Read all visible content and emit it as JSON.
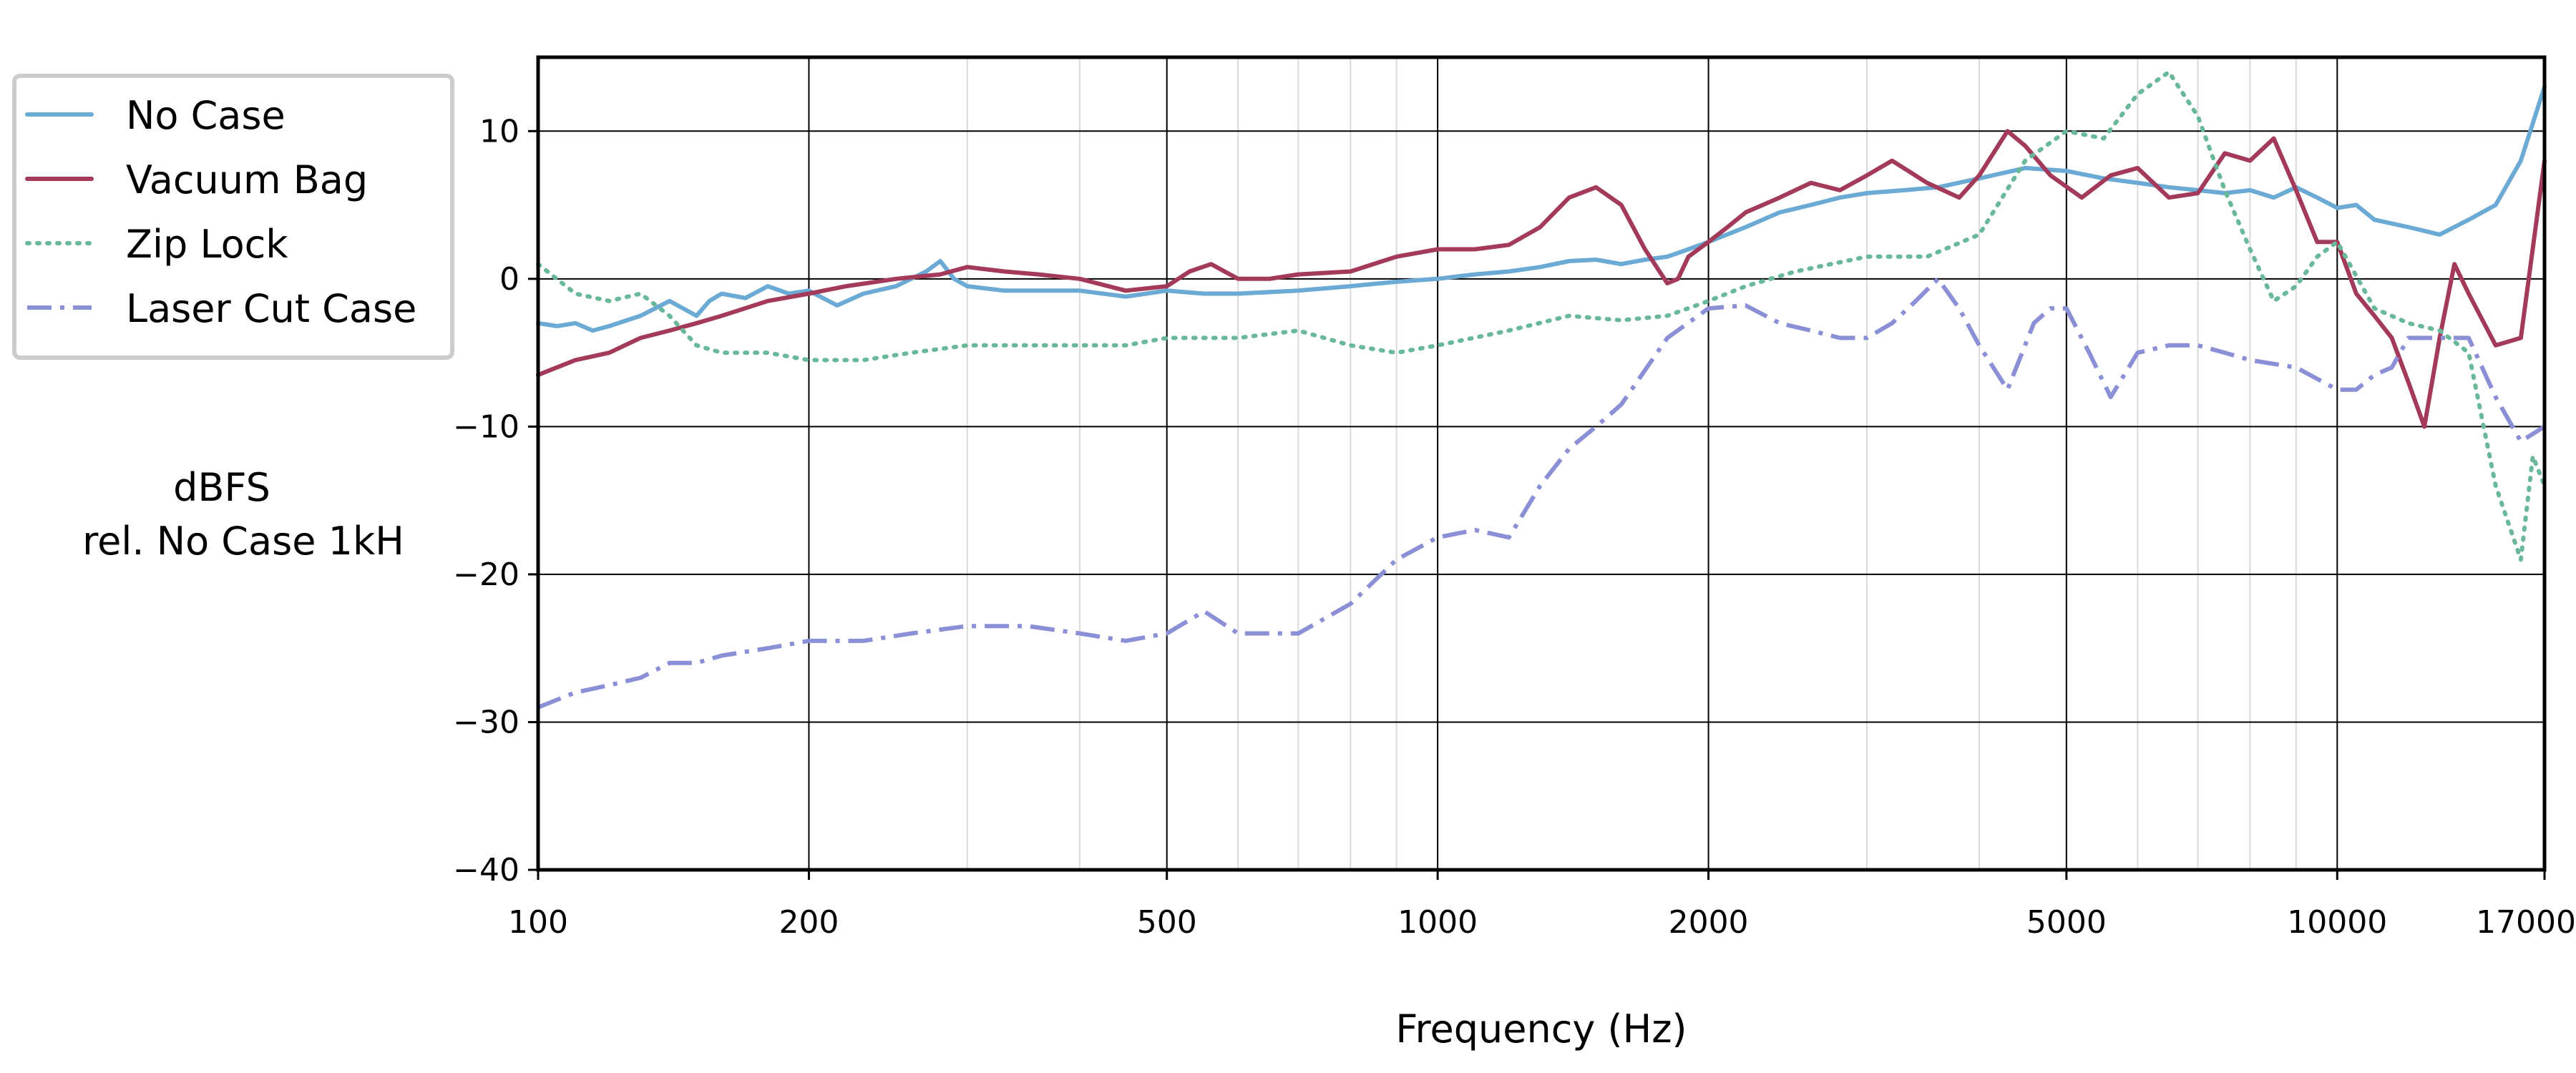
{
  "chart_data": {
    "type": "line",
    "xlabel": "Frequency (Hz)",
    "ylabel": [
      "dBFS",
      "rel. No Case 1kH"
    ],
    "xscale": "log",
    "xlim": [
      100,
      17000
    ],
    "ylim": [
      -40,
      15
    ],
    "xticks": [
      100,
      200,
      500,
      1000,
      2000,
      5000,
      10000,
      17000
    ],
    "xtick_labels": [
      "100",
      "200",
      "500",
      "1000",
      "2000",
      "5000",
      "10000",
      "17000"
    ],
    "yticks": [
      -40,
      -30,
      -20,
      -10,
      0,
      10
    ],
    "ytick_labels": [
      "−40",
      "−30",
      "−20",
      "−10",
      "0",
      "10"
    ],
    "grid": "major and minor (x), major (y)",
    "legend": "top-left, outside plot",
    "series": [
      {
        "name": "No Case",
        "color": "#6aaad5",
        "style": "solid",
        "x": [
          100,
          105,
          110,
          115,
          120,
          130,
          140,
          150,
          155,
          160,
          170,
          180,
          190,
          200,
          215,
          230,
          250,
          270,
          280,
          290,
          300,
          330,
          360,
          400,
          450,
          500,
          550,
          600,
          700,
          800,
          900,
          1000,
          1100,
          1200,
          1300,
          1400,
          1500,
          1600,
          1700,
          1800,
          1900,
          2000,
          2200,
          2400,
          2600,
          2800,
          3000,
          3300,
          3600,
          4000,
          4500,
          5000,
          5500,
          6000,
          6500,
          7000,
          7500,
          8000,
          8500,
          9000,
          9500,
          10000,
          10500,
          11000,
          12000,
          13000,
          14000,
          15000,
          16000,
          17000
        ],
        "y": [
          -3,
          -3.2,
          -3,
          -3.5,
          -3.2,
          -2.5,
          -1.5,
          -2.5,
          -1.5,
          -1,
          -1.3,
          -0.5,
          -1,
          -0.8,
          -1.8,
          -1,
          -0.5,
          0.5,
          1.2,
          0,
          -0.5,
          -0.8,
          -0.8,
          -0.8,
          -1.2,
          -0.8,
          -1,
          -1,
          -0.8,
          -0.5,
          -0.2,
          0,
          0.3,
          0.5,
          0.8,
          1.2,
          1.3,
          1,
          1.3,
          1.5,
          2,
          2.5,
          3.5,
          4.5,
          5,
          5.5,
          5.8,
          6,
          6.2,
          6.8,
          7.5,
          7.3,
          6.8,
          6.5,
          6.2,
          6,
          5.8,
          6,
          5.5,
          6.2,
          5.5,
          4.8,
          5,
          4,
          3.5,
          3,
          4,
          5,
          8,
          13
        ]
      },
      {
        "name": "Vacuum Bag",
        "color": "#a33a5a",
        "style": "solid",
        "x": [
          100,
          110,
          120,
          130,
          140,
          150,
          160,
          180,
          200,
          220,
          250,
          280,
          300,
          330,
          360,
          400,
          450,
          500,
          530,
          560,
          600,
          650,
          700,
          800,
          900,
          1000,
          1100,
          1200,
          1300,
          1400,
          1500,
          1600,
          1700,
          1800,
          1850,
          1900,
          2000,
          2100,
          2200,
          2400,
          2600,
          2800,
          3000,
          3200,
          3500,
          3800,
          4000,
          4300,
          4500,
          4800,
          5200,
          5600,
          6000,
          6500,
          7000,
          7500,
          8000,
          8500,
          9000,
          9500,
          10000,
          10500,
          11000,
          11500,
          12000,
          12500,
          13000,
          13500,
          14000,
          15000,
          16000,
          17000
        ],
        "y": [
          -6.5,
          -5.5,
          -5,
          -4,
          -3.5,
          -3,
          -2.5,
          -1.5,
          -1,
          -0.5,
          0,
          0.3,
          0.8,
          0.5,
          0.3,
          0,
          -0.8,
          -0.5,
          0.5,
          1,
          0,
          0,
          0.3,
          0.5,
          1.5,
          2,
          2,
          2.3,
          3.5,
          5.5,
          6.2,
          5,
          2,
          -0.3,
          0,
          1.5,
          2.5,
          3.5,
          4.5,
          5.5,
          6.5,
          6,
          7,
          8,
          6.5,
          5.5,
          7,
          10,
          9,
          7,
          5.5,
          7,
          7.5,
          5.5,
          5.8,
          8.5,
          8,
          9.5,
          6,
          2.5,
          2.5,
          -1,
          -2.5,
          -4,
          -7,
          -10,
          -4,
          1,
          -1,
          -4.5,
          -4,
          8
        ]
      },
      {
        "name": "Zip Lock",
        "color": "#6ab89a",
        "style": "dotted",
        "x": [
          100,
          110,
          120,
          130,
          140,
          150,
          160,
          180,
          200,
          230,
          260,
          300,
          350,
          400,
          450,
          500,
          550,
          600,
          700,
          800,
          900,
          1000,
          1200,
          1400,
          1600,
          1800,
          2000,
          2200,
          2500,
          3000,
          3500,
          4000,
          4500,
          5000,
          5500,
          6000,
          6500,
          7000,
          7500,
          8000,
          8500,
          9000,
          9500,
          10000,
          11000,
          12000,
          13000,
          14000,
          15000,
          16000,
          16500,
          17000
        ],
        "y": [
          1,
          -1,
          -1.5,
          -1,
          -2.5,
          -4.5,
          -5,
          -5,
          -5.5,
          -5.5,
          -5,
          -4.5,
          -4.5,
          -4.5,
          -4.5,
          -4,
          -4,
          -4,
          -3.5,
          -4.5,
          -5,
          -4.5,
          -3.5,
          -2.5,
          -2.8,
          -2.5,
          -1.5,
          -0.5,
          0.5,
          1.5,
          1.5,
          3,
          8,
          10,
          9.5,
          12.5,
          14,
          11,
          6,
          2,
          -1.5,
          -0.5,
          1.5,
          2.5,
          -2,
          -3,
          -3.5,
          -5,
          -14,
          -19,
          -12,
          -14
        ]
      },
      {
        "name": "Laser Cut Case",
        "color": "#8a8fd6",
        "style": "dashdot",
        "x": [
          100,
          110,
          120,
          130,
          140,
          150,
          160,
          180,
          200,
          230,
          260,
          300,
          350,
          400,
          450,
          500,
          550,
          600,
          650,
          700,
          800,
          900,
          1000,
          1100,
          1200,
          1300,
          1400,
          1500,
          1600,
          1800,
          2000,
          2200,
          2400,
          2600,
          2800,
          3000,
          3200,
          3400,
          3600,
          3800,
          4000,
          4300,
          4600,
          4800,
          5000,
          5300,
          5600,
          6000,
          6500,
          7000,
          7500,
          8000,
          9000,
          10000,
          10500,
          11000,
          11500,
          12000,
          13000,
          14000,
          15000,
          16000,
          17000
        ],
        "y": [
          -29,
          -28,
          -27.5,
          -27,
          -26,
          -26,
          -25.5,
          -25,
          -24.5,
          -24.5,
          -24,
          -23.5,
          -23.5,
          -24,
          -24.5,
          -24,
          -22.5,
          -24,
          -24,
          -24,
          -22,
          -19,
          -17.5,
          -17,
          -17.5,
          -14,
          -11.5,
          -10,
          -8.5,
          -4,
          -2,
          -1.8,
          -3,
          -3.5,
          -4,
          -4,
          -3,
          -1.5,
          0,
          -2,
          -4.5,
          -7.5,
          -3,
          -2,
          -2,
          -5,
          -8,
          -5,
          -4.5,
          -4.5,
          -5,
          -5.5,
          -6,
          -7.5,
          -7.5,
          -6.5,
          -6,
          -4,
          -4,
          -4,
          -8,
          -11,
          -10
        ]
      }
    ]
  }
}
